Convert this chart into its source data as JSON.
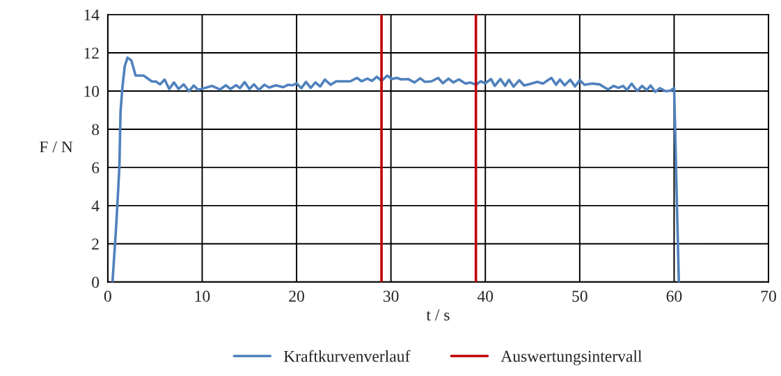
{
  "chart_data": {
    "type": "line",
    "xlabel": "t / s",
    "ylabel": "F / N",
    "xlim": [
      0,
      70
    ],
    "xticks": [
      0,
      10,
      20,
      30,
      40,
      50,
      60,
      70
    ],
    "ylim": [
      0,
      14
    ],
    "yticks": [
      0,
      2,
      4,
      6,
      8,
      10,
      12,
      14
    ],
    "grid": true,
    "legend": "bottom",
    "line_style": "solid",
    "marker": "none",
    "series": [
      {
        "name": "Kraftkurvenverlauf",
        "color": "#4f81bd",
        "x": [
          0.5,
          0.9,
          1.23,
          1.35,
          1.55,
          1.8,
          2.09,
          2.5,
          2.95,
          3.8,
          4.67,
          5.1,
          5.53,
          6.02,
          6.51,
          7.01,
          7.5,
          8.04,
          8.6,
          9.1,
          9.59,
          10.2,
          11.06,
          11.9,
          12.5,
          13.0,
          13.6,
          14.0,
          14.5,
          15.0,
          15.5,
          16.0,
          16.6,
          17.1,
          17.8,
          18.6,
          19.1,
          19.6,
          20.0,
          20.5,
          21.0,
          21.5,
          22.0,
          22.5,
          23.0,
          23.6,
          24.2,
          25.7,
          26.4,
          26.9,
          27.5,
          28.0,
          28.5,
          29.0,
          29.6,
          30.1,
          30.6,
          31.1,
          31.8,
          32.5,
          33.1,
          33.6,
          34.3,
          35.0,
          35.5,
          36.1,
          36.6,
          37.2,
          37.9,
          38.4,
          39.0,
          39.5,
          40.0,
          40.6,
          41.0,
          41.6,
          42.1,
          42.5,
          43.0,
          43.6,
          44.1,
          44.9,
          45.5,
          46.1,
          47.0,
          47.5,
          47.9,
          48.4,
          49.0,
          49.5,
          50.0,
          50.5,
          51.3,
          52.1,
          53.0,
          53.6,
          54.1,
          54.6,
          55.0,
          55.5,
          56.1,
          56.6,
          57.1,
          57.5,
          58.0,
          58.5,
          59.1,
          59.6,
          60.0,
          60.5
        ],
        "values": [
          0,
          3,
          6,
          8.9,
          10.2,
          11.3,
          11.75,
          11.6,
          10.81,
          10.81,
          10.5,
          10.5,
          10.35,
          10.6,
          10.11,
          10.45,
          10.11,
          10.35,
          9.99,
          10.29,
          10.06,
          10.15,
          10.27,
          10.08,
          10.3,
          10.11,
          10.31,
          10.15,
          10.47,
          10.11,
          10.35,
          10.06,
          10.33,
          10.18,
          10.3,
          10.2,
          10.33,
          10.3,
          10.41,
          10.15,
          10.48,
          10.17,
          10.45,
          10.24,
          10.6,
          10.33,
          10.51,
          10.51,
          10.69,
          10.51,
          10.65,
          10.53,
          10.75,
          10.53,
          10.81,
          10.63,
          10.69,
          10.61,
          10.63,
          10.45,
          10.67,
          10.48,
          10.51,
          10.69,
          10.41,
          10.65,
          10.45,
          10.61,
          10.39,
          10.45,
          10.33,
          10.51,
          10.41,
          10.63,
          10.27,
          10.63,
          10.27,
          10.59,
          10.23,
          10.57,
          10.29,
          10.39,
          10.48,
          10.39,
          10.69,
          10.33,
          10.6,
          10.3,
          10.59,
          10.24,
          10.57,
          10.33,
          10.39,
          10.35,
          10.08,
          10.27,
          10.17,
          10.27,
          10.05,
          10.39,
          10.0,
          10.27,
          10.05,
          10.29,
          9.96,
          10.15,
          9.99,
          10.02,
          10.15,
          0
        ]
      }
    ],
    "ref_lines": [
      {
        "axis": "x",
        "value": 29,
        "label": "Auswertungsintervall",
        "color": "#c00000",
        "line_style": "solid"
      },
      {
        "axis": "x",
        "value": 39,
        "color": "#c00000",
        "line_style": "solid"
      }
    ]
  }
}
